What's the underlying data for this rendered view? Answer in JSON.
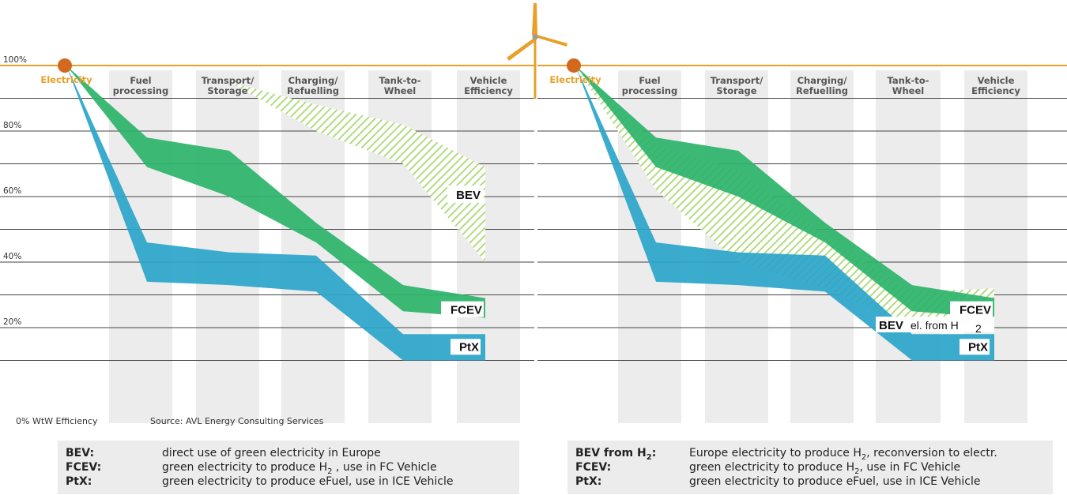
{
  "chart_data": [
    {
      "type": "area",
      "top_label": "Electricity",
      "stages": [
        "Fuel\nprocessing",
        "Transport/\nStorage",
        "Charging/\nRefuelling",
        "Tank-to-\nWheel",
        "Vehicle\nEfficiency"
      ],
      "y_ticks": [
        "100%",
        "80%",
        "60%",
        "40%",
        "20%",
        "0%"
      ],
      "ylim": [
        0,
        100
      ],
      "grid": true,
      "bottom_axis_label": "WtW Efficiency",
      "source": "Source: AVL Energy Consulting Services",
      "series": [
        {
          "name": "BEV",
          "color": "#a8d86e",
          "pattern": "hatched",
          "upper": [
            100,
            100,
            95,
            88,
            82,
            69
          ],
          "lower": [
            100,
            100,
            95,
            80,
            70,
            40
          ]
        },
        {
          "name": "FCEV",
          "color": "#2db36a",
          "upper": [
            100,
            78,
            74,
            52,
            33,
            29
          ],
          "lower": [
            100,
            69,
            60,
            46,
            25,
            23
          ]
        },
        {
          "name": "PtX",
          "color": "#2aa5c9",
          "upper": [
            100,
            46,
            43,
            42,
            18,
            18
          ],
          "lower": [
            100,
            34,
            33,
            31,
            10,
            10
          ]
        }
      ],
      "labels": {
        "BEV": "BEV",
        "FCEV": "FCEV",
        "PtX": "PtX"
      }
    },
    {
      "type": "area",
      "top_label": "Electricity",
      "stages": [
        "Fuel\nprocessing",
        "Transport/\nStorage",
        "Charging/\nRefuelling",
        "Tank-to-\nWheel",
        "Vehicle\nEfficiency"
      ],
      "y_ticks": [
        "100%",
        "80%",
        "60%",
        "40%",
        "20%",
        "0%"
      ],
      "ylim": [
        0,
        100
      ],
      "grid": true,
      "series": [
        {
          "name": "BEV el. from H2",
          "color": "#a8d86e",
          "pattern": "hatched",
          "upper": [
            100,
            76,
            68,
            48,
            31,
            32
          ],
          "lower": [
            100,
            62,
            40,
            32,
            20,
            20
          ]
        },
        {
          "name": "FCEV",
          "color": "#2db36a",
          "upper": [
            100,
            78,
            74,
            52,
            33,
            29
          ],
          "lower": [
            100,
            69,
            60,
            46,
            25,
            23
          ]
        },
        {
          "name": "PtX",
          "color": "#2aa5c9",
          "upper": [
            100,
            46,
            43,
            42,
            18,
            18
          ],
          "lower": [
            100,
            34,
            33,
            31,
            10,
            10
          ]
        }
      ],
      "labels": {
        "BEV": "BEV",
        "BEV_suffix": "el. from H",
        "BEV_sub": "2",
        "FCEV": "FCEV",
        "PtX": "PtX"
      }
    }
  ],
  "legend_left": {
    "rows": [
      {
        "key": "BEV:",
        "desc": "direct use of green electricity in Europe"
      },
      {
        "key": "FCEV:",
        "desc_pre": "green electricity to produce H",
        "desc_sub": "2",
        "desc_post": " , use in FC Vehicle"
      },
      {
        "key": "PtX:",
        "desc": "green electricity to produce eFuel, use in ICE Vehicle"
      }
    ]
  },
  "legend_right": {
    "rows": [
      {
        "key_pre": "BEV from H",
        "key_sub": "2",
        "key_post": ":",
        "desc_pre": "Europe electricity to produce H",
        "desc_sub": "2",
        "desc_post": ", reconversion to electr."
      },
      {
        "key": "FCEV:",
        "desc_pre": "green electricity to produce H",
        "desc_sub": "2",
        "desc_post": ", use in FC Vehicle"
      },
      {
        "key": "PtX:",
        "desc": "green electricity to produce eFuel, use in ICE Vehicle"
      }
    ]
  },
  "colors": {
    "axis_top": "#e8a028",
    "origin_dot": "#d2691e",
    "grid": "#444444",
    "column": "#ececec",
    "turbine": "#e8a028"
  },
  "icons": [
    "wind-turbine-icon"
  ]
}
